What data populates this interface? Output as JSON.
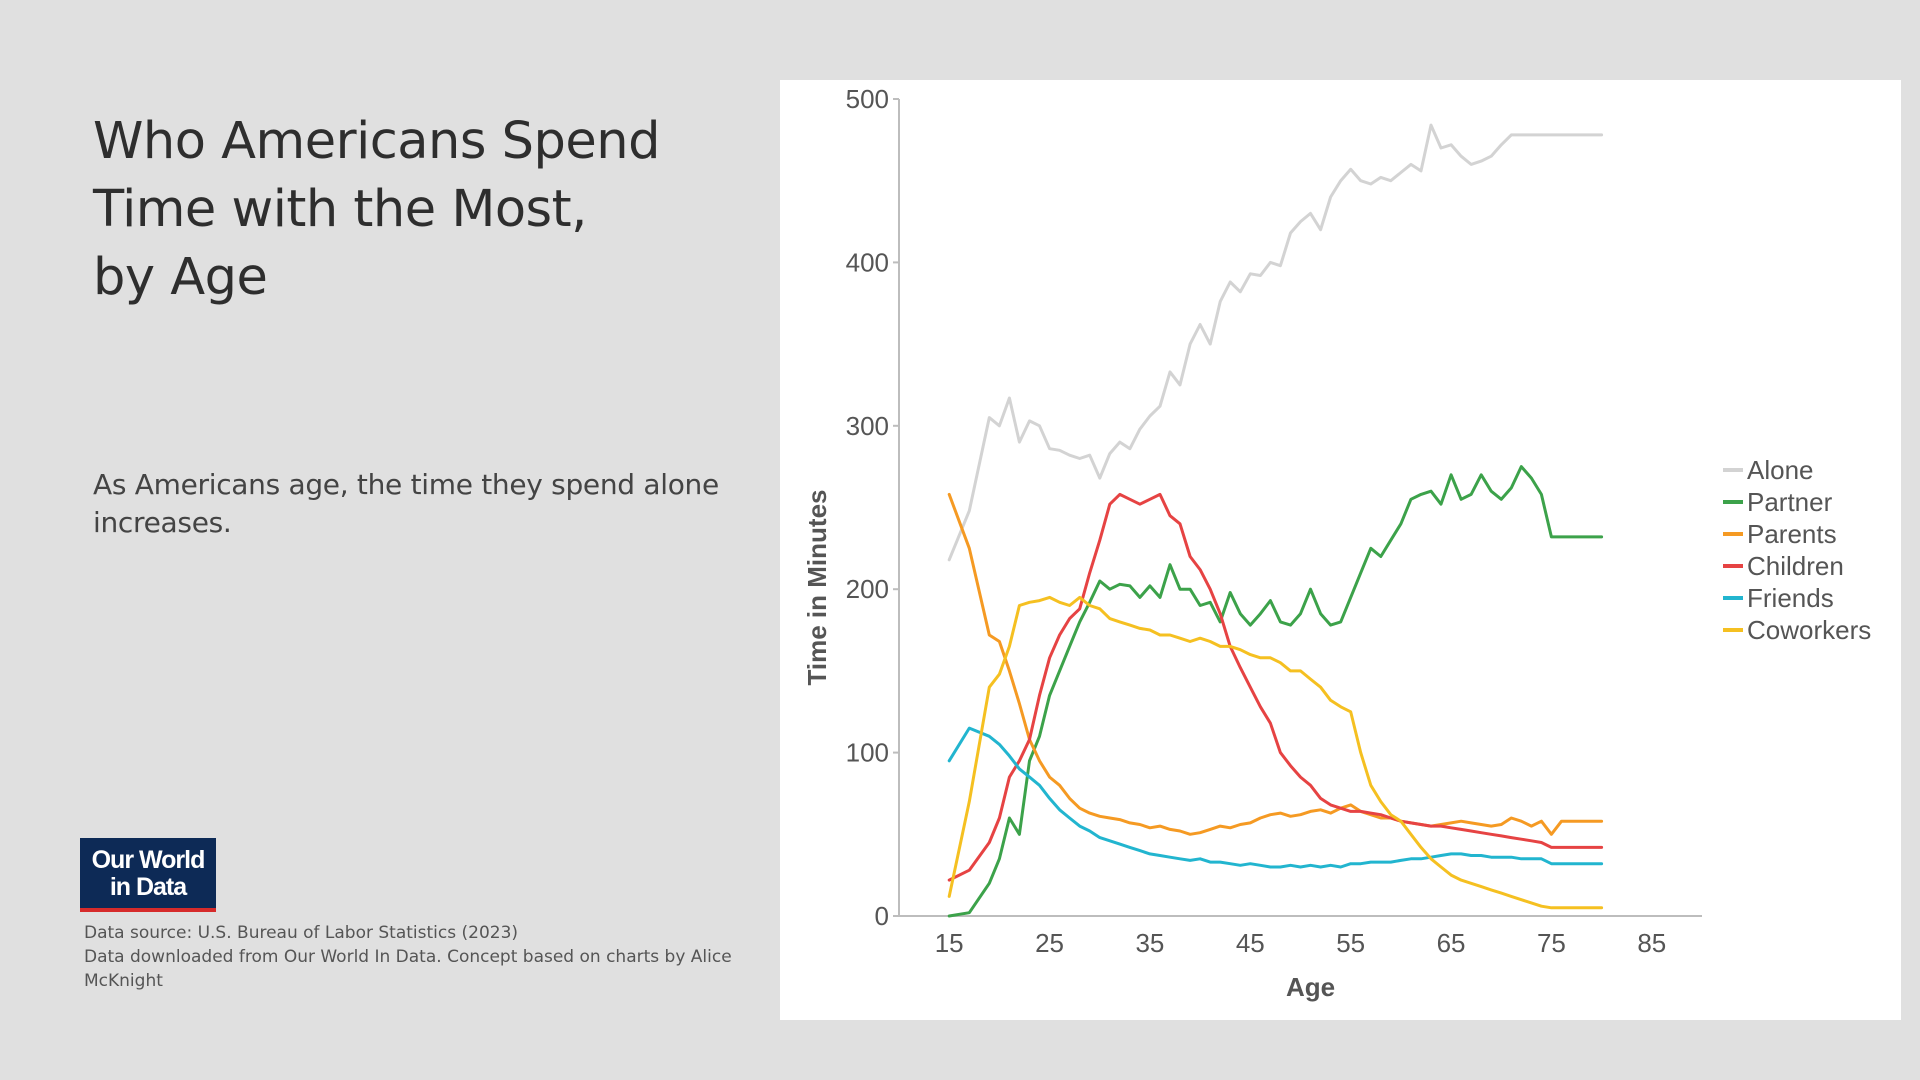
{
  "title_lines": [
    "Who Americans Spend",
    "Time with the Most,",
    "by Age"
  ],
  "subtitle": "As Americans age, the time they spend alone increases.",
  "logo": {
    "line1": "Our World",
    "line2": "in Data"
  },
  "source": {
    "line1": "Data source: U.S. Bureau of Labor Statistics (2023)",
    "line2": "Data downloaded from Our World In Data. Concept based on charts by Alice McKnight"
  },
  "chart_data": {
    "type": "line",
    "title": "",
    "xlabel": "Age",
    "ylabel": "Time in Minutes",
    "xlim": [
      10,
      90
    ],
    "ylim": [
      0,
      500
    ],
    "x_ticks": [
      15,
      25,
      35,
      45,
      55,
      65,
      75,
      85
    ],
    "y_ticks": [
      0,
      100,
      200,
      300,
      400,
      500
    ],
    "grid": false,
    "legend_position": "right",
    "x": [
      15,
      17,
      19,
      20,
      21,
      22,
      23,
      24,
      25,
      26,
      27,
      28,
      29,
      30,
      31,
      32,
      33,
      34,
      35,
      36,
      37,
      38,
      39,
      40,
      41,
      42,
      43,
      44,
      45,
      46,
      47,
      48,
      49,
      50,
      51,
      52,
      53,
      54,
      55,
      56,
      57,
      58,
      59,
      60,
      61,
      62,
      63,
      64,
      65,
      66,
      67,
      68,
      69,
      70,
      71,
      72,
      73,
      74,
      75,
      76,
      77,
      78,
      79,
      80
    ],
    "series": [
      {
        "name": "Alone",
        "color": "#d3d3d3",
        "values": [
          218,
          248,
          305,
          300,
          317,
          290,
          303,
          300,
          286,
          285,
          282,
          280,
          282,
          268,
          283,
          290,
          286,
          298,
          306,
          312,
          333,
          325,
          350,
          362,
          350,
          376,
          388,
          382,
          393,
          392,
          400,
          398,
          418,
          425,
          430,
          420,
          440,
          450,
          457,
          450,
          448,
          452,
          450,
          455,
          460,
          456,
          484,
          470,
          472,
          465,
          460,
          462,
          465,
          472,
          478,
          478,
          478,
          478,
          478,
          478,
          478,
          478,
          478,
          478
        ]
      },
      {
        "name": "Partner",
        "color": "#3ca24a",
        "values": [
          0,
          2,
          20,
          35,
          60,
          50,
          95,
          110,
          135,
          150,
          165,
          180,
          192,
          205,
          200,
          203,
          202,
          195,
          202,
          195,
          215,
          200,
          200,
          190,
          192,
          180,
          198,
          185,
          178,
          185,
          193,
          180,
          178,
          185,
          200,
          185,
          178,
          180,
          195,
          210,
          225,
          220,
          230,
          240,
          255,
          258,
          260,
          252,
          270,
          255,
          258,
          270,
          260,
          255,
          262,
          275,
          268,
          258,
          232,
          232,
          232,
          232,
          232,
          232
        ]
      },
      {
        "name": "Parents",
        "color": "#f59a23",
        "values": [
          258,
          225,
          172,
          168,
          150,
          130,
          108,
          95,
          85,
          80,
          72,
          66,
          63,
          61,
          60,
          59,
          57,
          56,
          54,
          55,
          53,
          52,
          50,
          51,
          53,
          55,
          54,
          56,
          57,
          60,
          62,
          63,
          61,
          62,
          64,
          65,
          63,
          66,
          68,
          64,
          62,
          60,
          60,
          58,
          57,
          56,
          55,
          56,
          57,
          58,
          57,
          56,
          55,
          56,
          60,
          58,
          55,
          58,
          50,
          58,
          58,
          58,
          58,
          58
        ]
      },
      {
        "name": "Children",
        "color": "#e64343",
        "values": [
          22,
          28,
          45,
          60,
          85,
          95,
          108,
          135,
          158,
          172,
          182,
          188,
          210,
          230,
          252,
          258,
          255,
          252,
          255,
          258,
          245,
          240,
          220,
          212,
          200,
          185,
          165,
          152,
          140,
          128,
          118,
          100,
          92,
          85,
          80,
          72,
          68,
          66,
          64,
          64,
          63,
          62,
          60,
          58,
          57,
          56,
          55,
          55,
          54,
          53,
          52,
          51,
          50,
          49,
          48,
          47,
          46,
          45,
          42,
          42,
          42,
          42,
          42,
          42
        ]
      },
      {
        "name": "Friends",
        "color": "#22b5cf",
        "values": [
          95,
          115,
          110,
          105,
          98,
          90,
          85,
          80,
          72,
          65,
          60,
          55,
          52,
          48,
          46,
          44,
          42,
          40,
          38,
          37,
          36,
          35,
          34,
          35,
          33,
          33,
          32,
          31,
          32,
          31,
          30,
          30,
          31,
          30,
          31,
          30,
          31,
          30,
          32,
          32,
          33,
          33,
          33,
          34,
          35,
          35,
          36,
          37,
          38,
          38,
          37,
          37,
          36,
          36,
          36,
          35,
          35,
          35,
          32,
          32,
          32,
          32,
          32,
          32
        ]
      },
      {
        "name": "Coworkers",
        "color": "#f5c021",
        "values": [
          12,
          70,
          140,
          148,
          165,
          190,
          192,
          193,
          195,
          192,
          190,
          195,
          190,
          188,
          182,
          180,
          178,
          176,
          175,
          172,
          172,
          170,
          168,
          170,
          168,
          165,
          165,
          163,
          160,
          158,
          158,
          155,
          150,
          150,
          145,
          140,
          132,
          128,
          125,
          100,
          80,
          70,
          62,
          58,
          50,
          42,
          35,
          30,
          25,
          22,
          20,
          18,
          16,
          14,
          12,
          10,
          8,
          6,
          5,
          5,
          5,
          5,
          5,
          5
        ]
      }
    ]
  }
}
